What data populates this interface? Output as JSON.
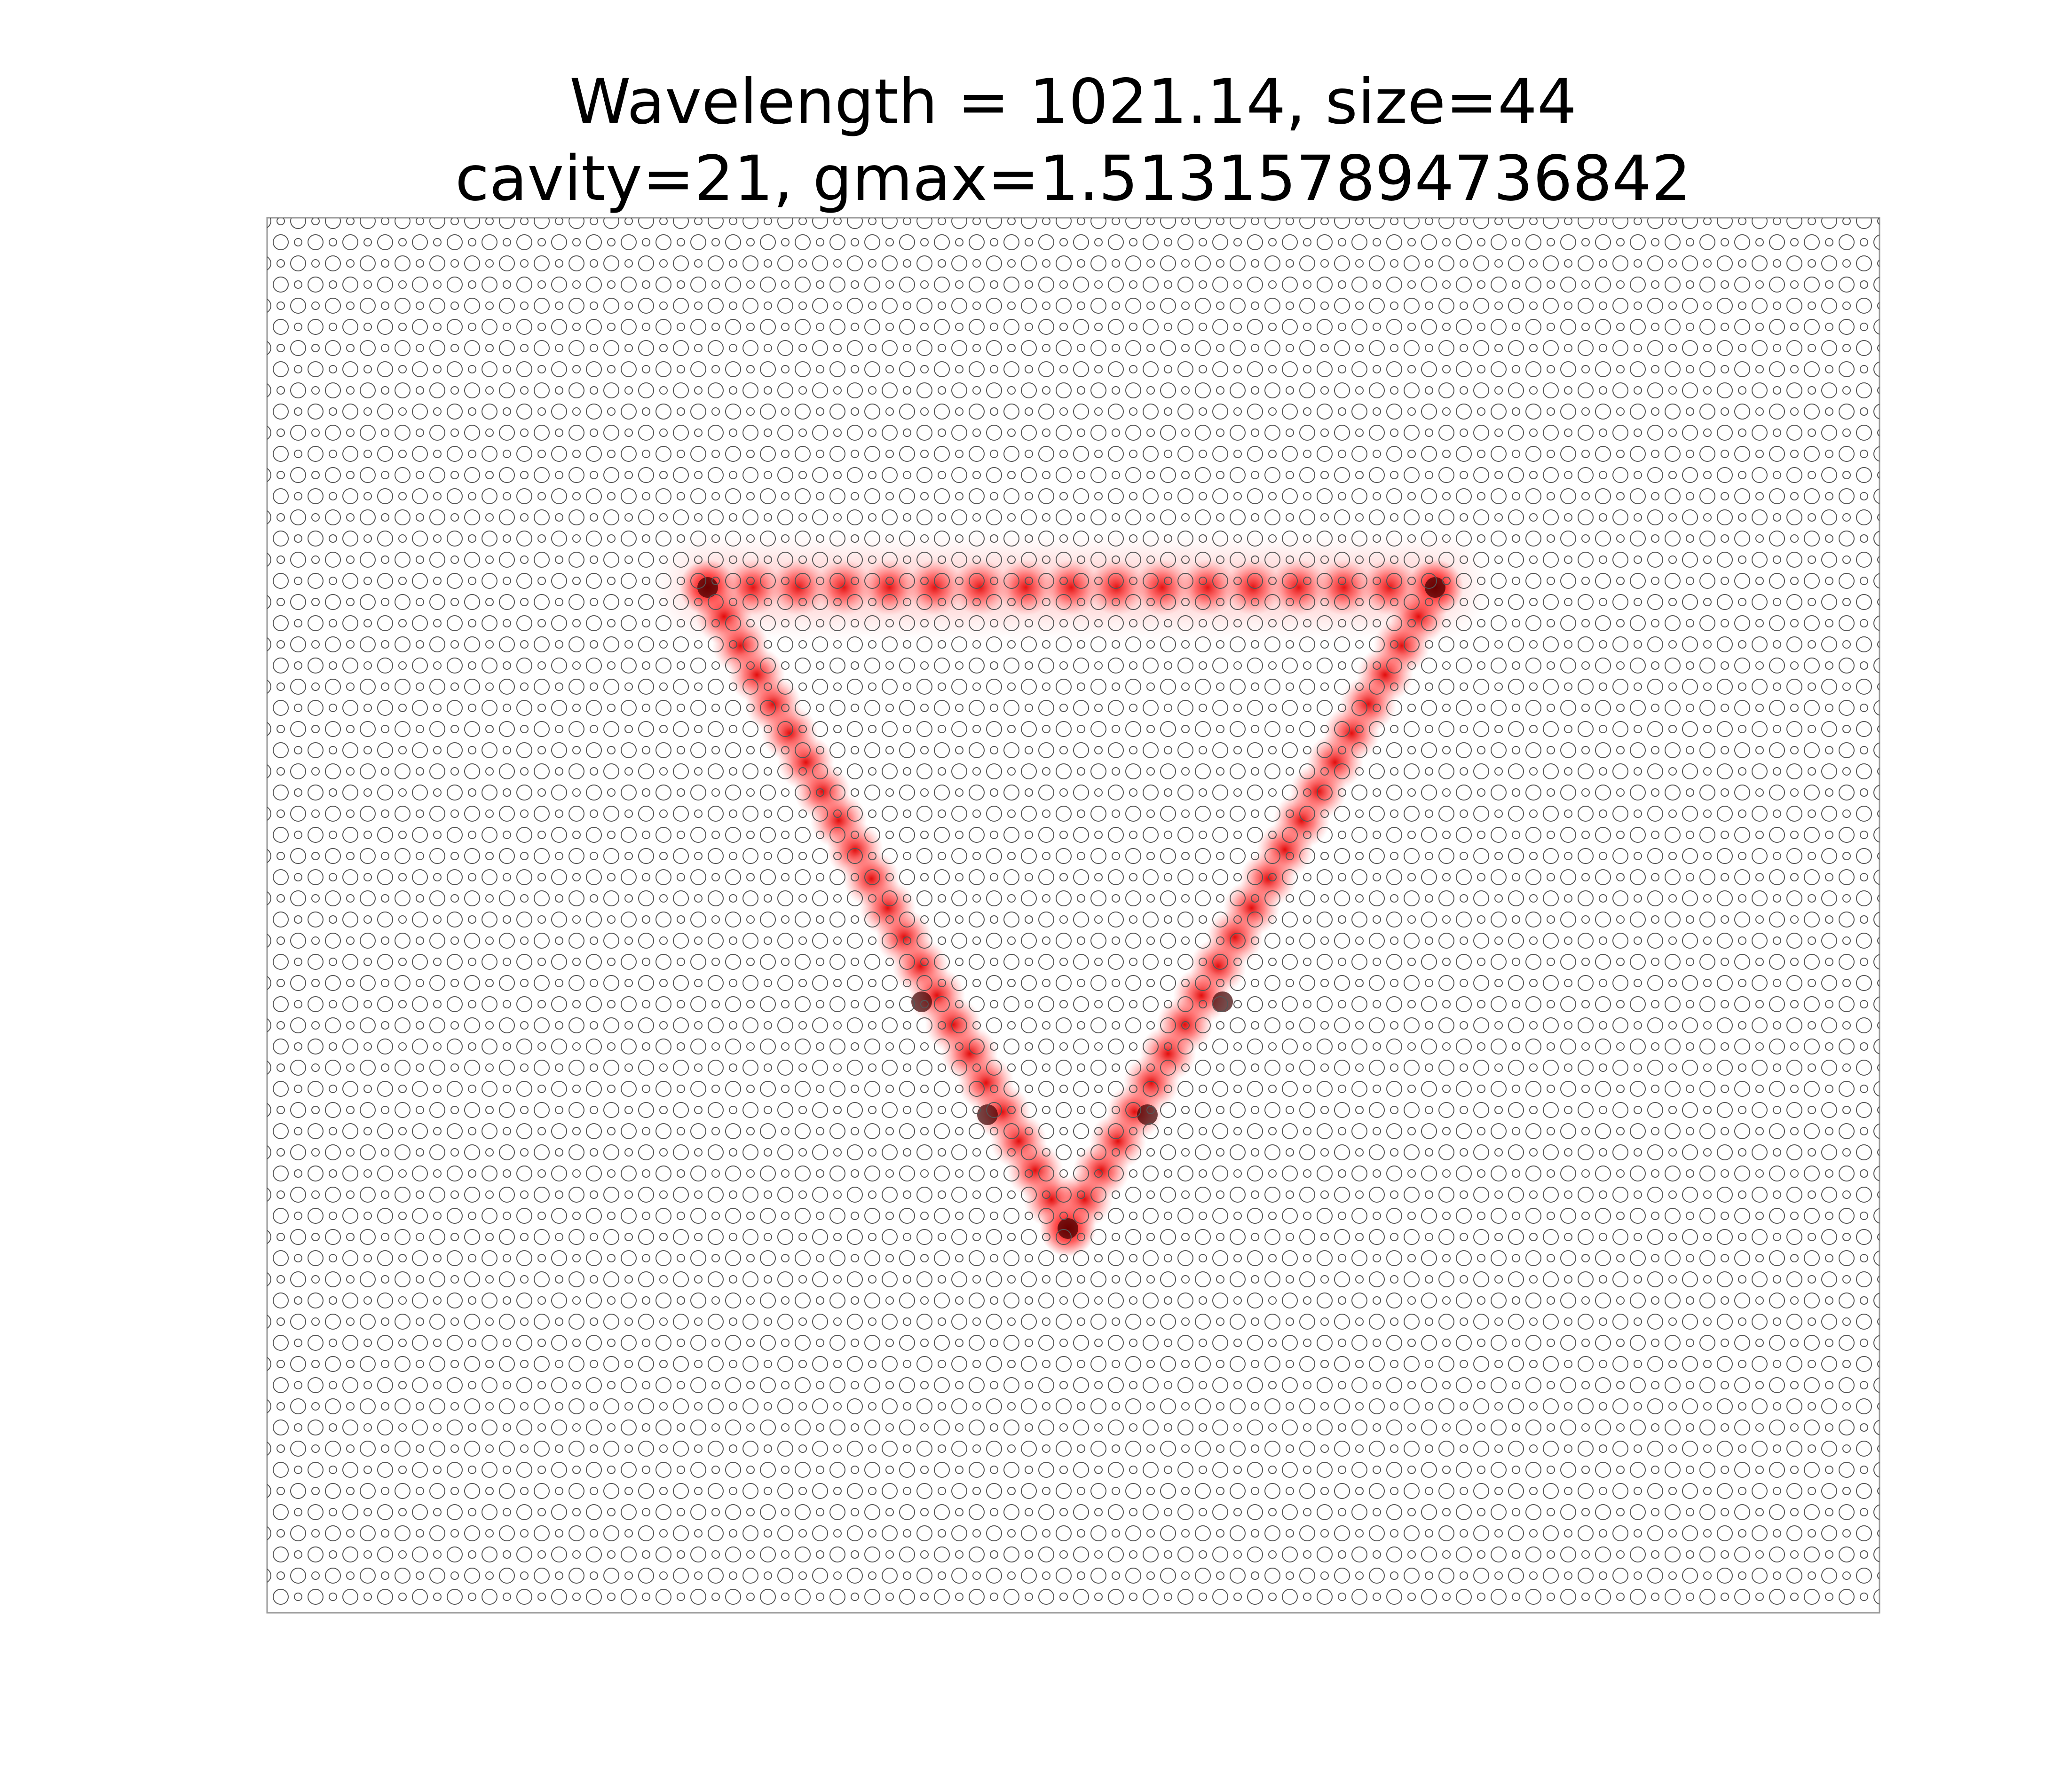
{
  "chart_data": {
    "type": "field",
    "title": [
      "Wavelength = 1021.14, size=44",
      "cavity=21, gmax=1.513157894736842"
    ]
  }
}
